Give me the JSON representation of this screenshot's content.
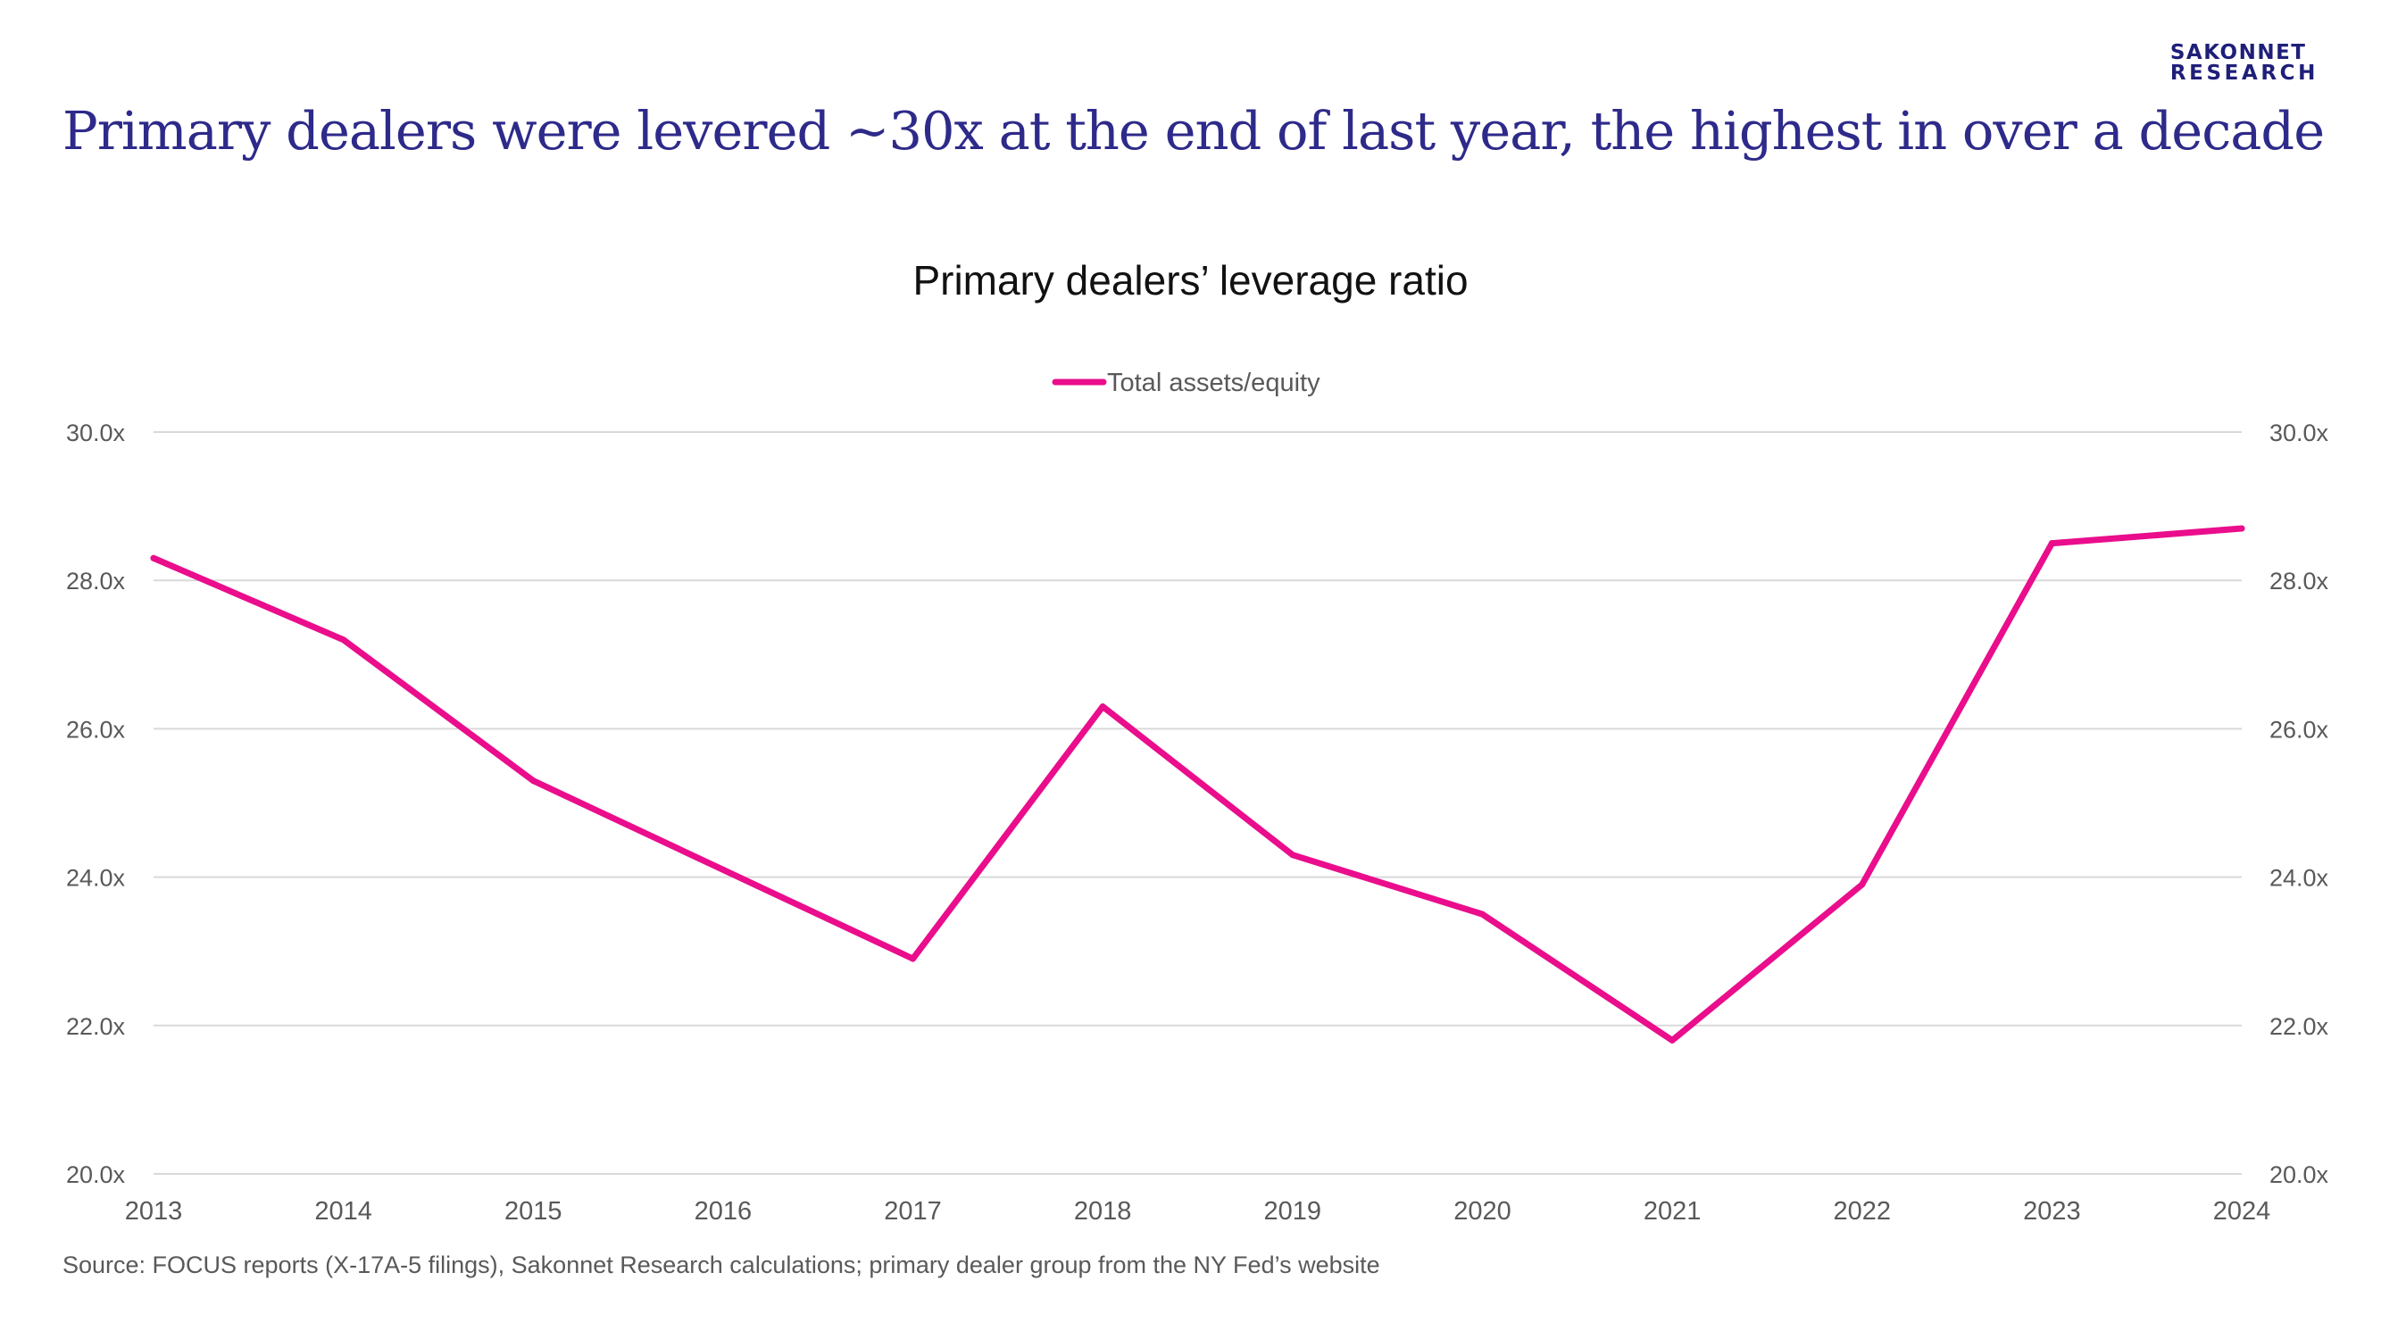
{
  "logo": {
    "line1": "SAKONNET",
    "line2": "RESEARCH"
  },
  "headline": "Primary dealers were levered ~30x at the end of last year, the highest in over a decade",
  "source_note": "Source: FOCUS reports (X-17A-5 filings), Sakonnet Research calculations; primary dealer group from the NY Fed’s website",
  "colors": {
    "headline": "#2e2a8a",
    "logo": "#1f1f7a",
    "series": "#ea0d8c",
    "gridline": "#d9d9d9",
    "axis_text": "#595959"
  },
  "chart_data": {
    "type": "line",
    "title": "Primary dealers’ leverage ratio",
    "xlabel": "",
    "ylabel": "",
    "x": [
      "2013",
      "2014",
      "2015",
      "2016",
      "2017",
      "2018",
      "2019",
      "2020",
      "2021",
      "2022",
      "2023",
      "2024"
    ],
    "series": [
      {
        "name": "Total assets/equity",
        "color": "#ea0d8c",
        "values": [
          28.3,
          27.2,
          25.3,
          24.1,
          22.9,
          26.3,
          24.3,
          23.5,
          21.8,
          23.9,
          28.5,
          28.7
        ]
      }
    ],
    "ylim": [
      20,
      30
    ],
    "yticks": [
      20,
      22,
      24,
      26,
      28,
      30
    ],
    "ytick_labels": [
      "20.0x",
      "22.0x",
      "24.0x",
      "26.0x",
      "28.0x",
      "30.0x"
    ],
    "secondary_y_axis": true,
    "grid": "horizontal",
    "legend": "top-center"
  }
}
